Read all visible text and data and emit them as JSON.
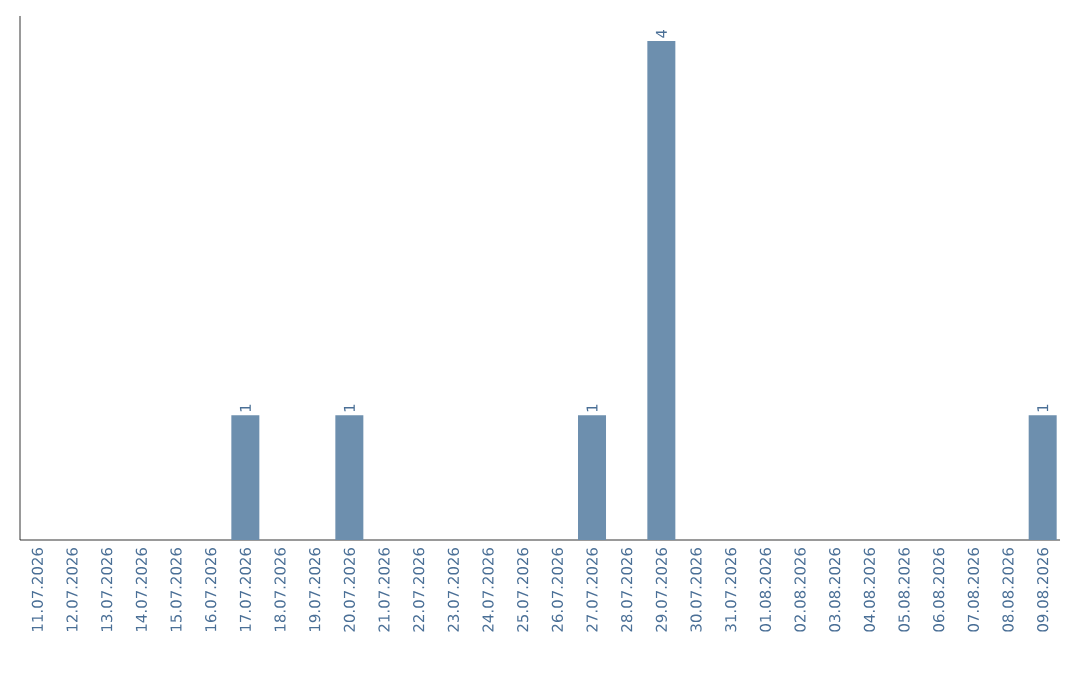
{
  "chart_data": {
    "type": "bar",
    "categories": [
      "11.07.2026",
      "12.07.2026",
      "13.07.2026",
      "14.07.2026",
      "15.07.2026",
      "16.07.2026",
      "17.07.2026",
      "18.07.2026",
      "19.07.2026",
      "20.07.2026",
      "21.07.2026",
      "22.07.2026",
      "23.07.2026",
      "24.07.2026",
      "25.07.2026",
      "26.07.2026",
      "27.07.2026",
      "28.07.2026",
      "29.07.2026",
      "30.07.2026",
      "31.07.2026",
      "01.08.2026",
      "02.08.2026",
      "03.08.2026",
      "04.08.2026",
      "05.08.2026",
      "06.08.2026",
      "07.08.2026",
      "08.08.2026",
      "09.08.2026"
    ],
    "values": [
      0,
      0,
      0,
      0,
      0,
      0,
      1,
      0,
      0,
      1,
      0,
      0,
      0,
      0,
      0,
      0,
      1,
      0,
      4,
      0,
      0,
      0,
      0,
      0,
      0,
      0,
      0,
      0,
      0,
      1
    ],
    "value_labels": [
      null,
      null,
      null,
      null,
      null,
      null,
      "1",
      null,
      null,
      "1",
      null,
      null,
      null,
      null,
      null,
      null,
      "1",
      null,
      "4",
      null,
      null,
      null,
      null,
      null,
      null,
      null,
      null,
      null,
      null,
      "1"
    ],
    "color": "#6d8fae"
  }
}
